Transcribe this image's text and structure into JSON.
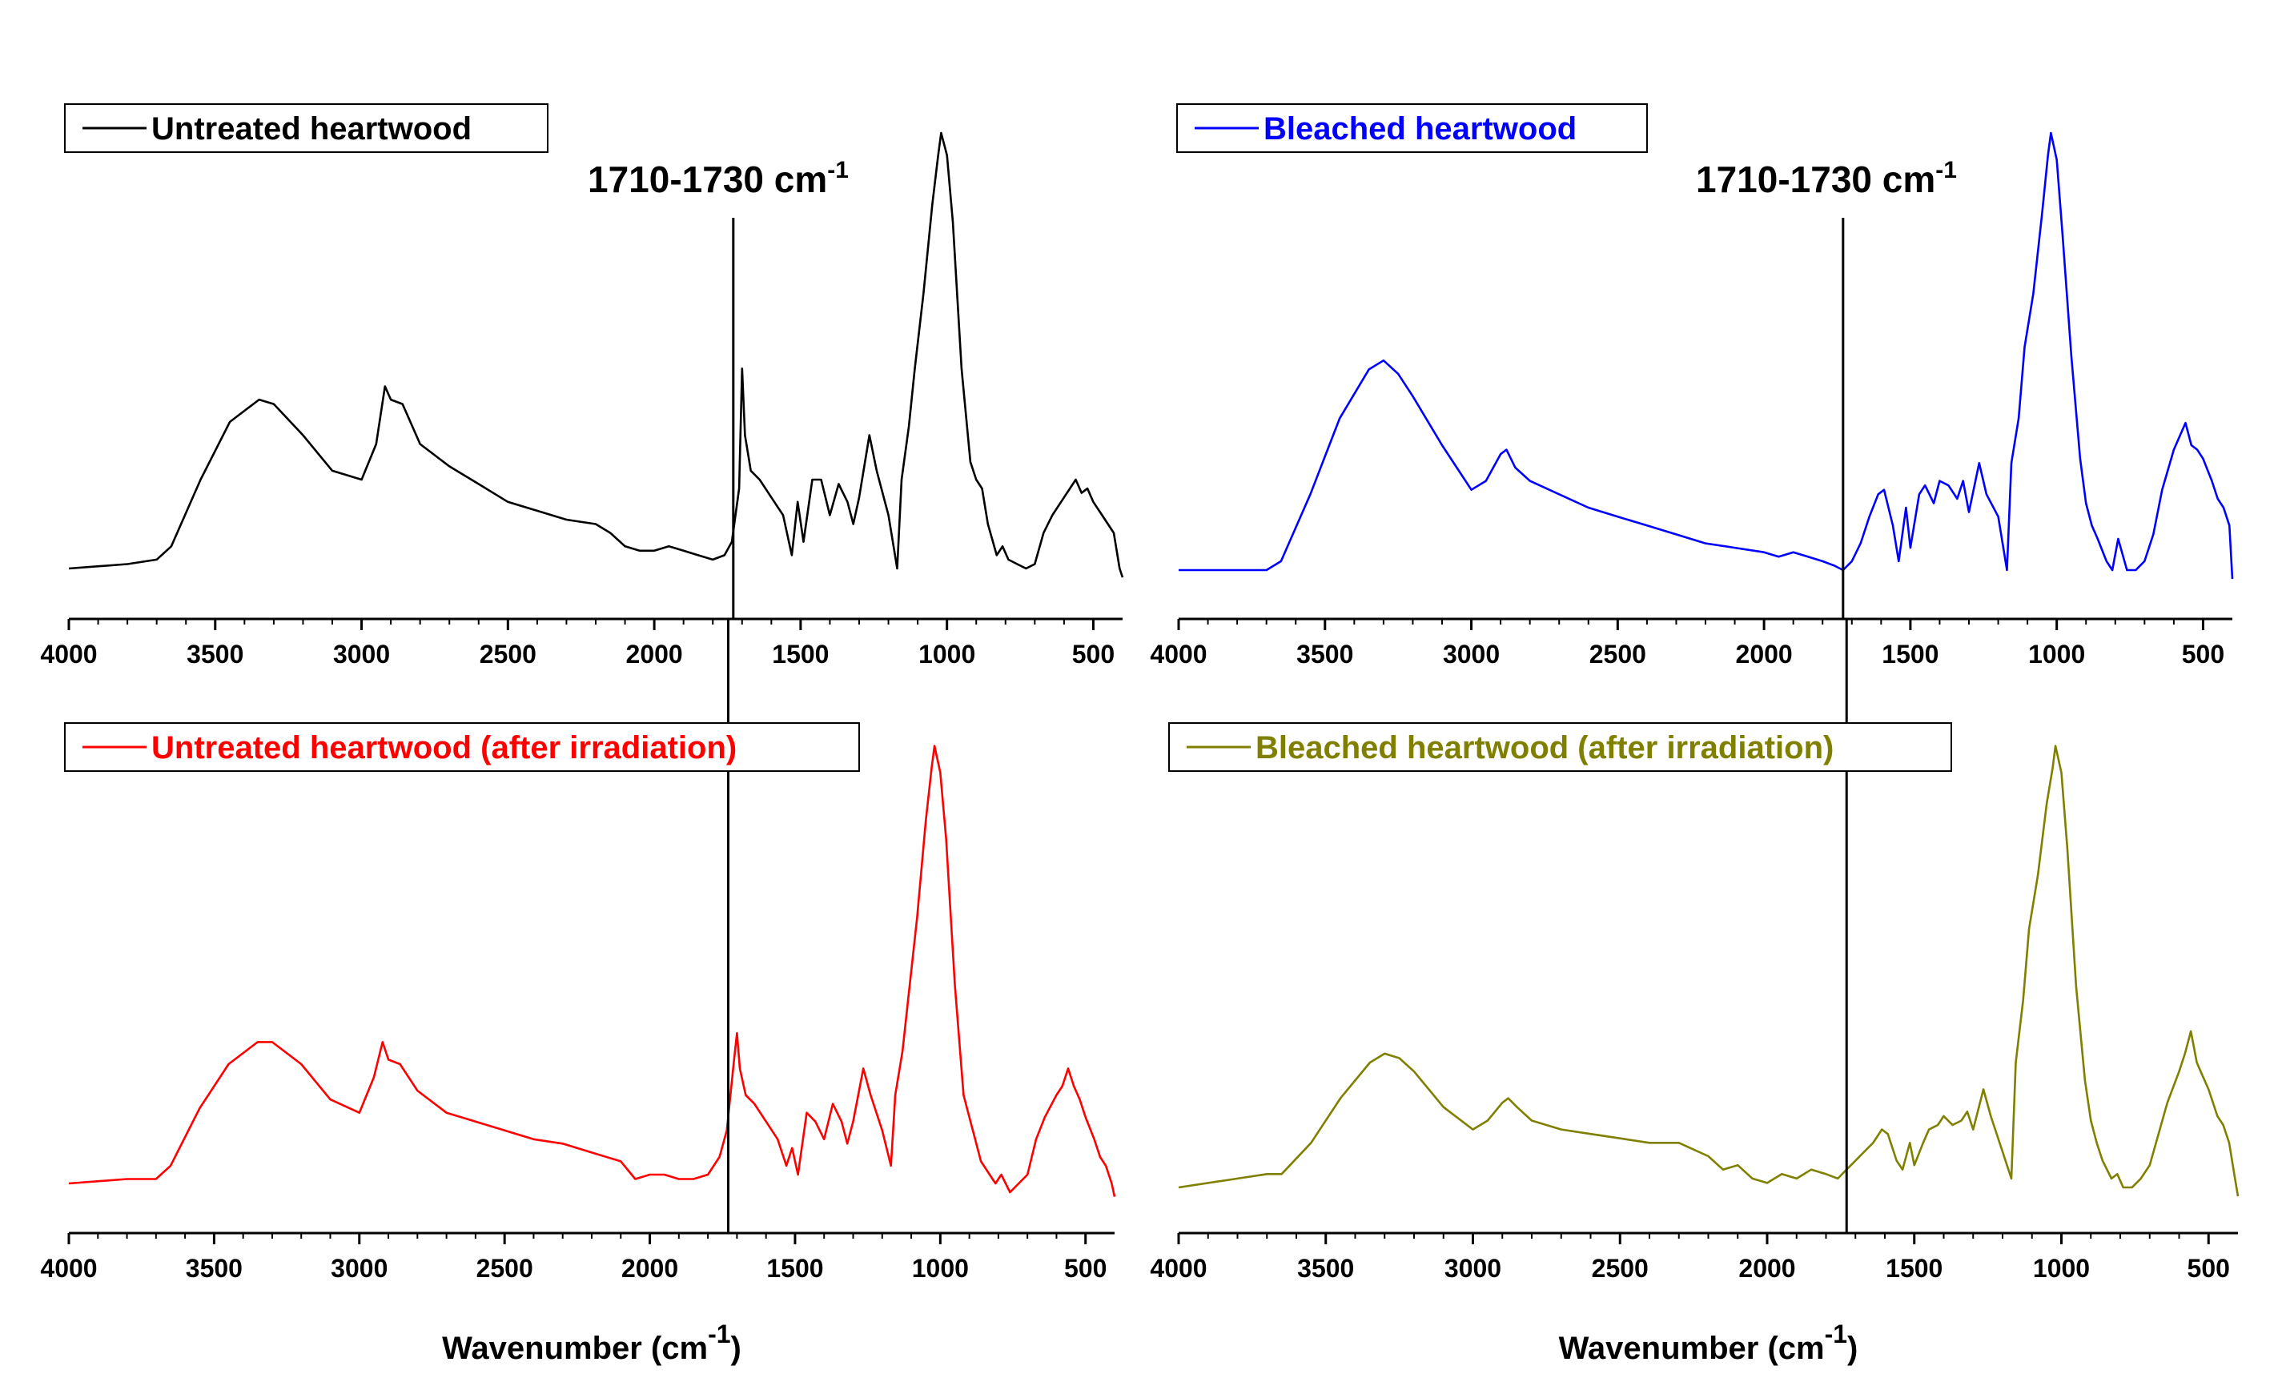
{
  "chart_data": [
    {
      "type": "line",
      "panel": "top-left",
      "legend": "Untreated heartwood",
      "color": "#000000",
      "xlim": [
        4000,
        400
      ],
      "xticks": [
        4000,
        3500,
        3000,
        2500,
        2000,
        1500,
        1000,
        500
      ],
      "xlabel": "",
      "annotation": {
        "text": "1710-1730 cm",
        "sup": "-1",
        "x": 1730
      },
      "x": [
        4000,
        3800,
        3700,
        3650,
        3550,
        3450,
        3350,
        3300,
        3200,
        3100,
        3000,
        2950,
        2920,
        2900,
        2860,
        2800,
        2700,
        2600,
        2500,
        2400,
        2300,
        2200,
        2150,
        2100,
        2050,
        2000,
        1950,
        1900,
        1850,
        1800,
        1760,
        1735,
        1710,
        1700,
        1690,
        1670,
        1640,
        1600,
        1560,
        1530,
        1510,
        1490,
        1460,
        1430,
        1400,
        1370,
        1340,
        1320,
        1300,
        1265,
        1240,
        1200,
        1170,
        1155,
        1130,
        1110,
        1080,
        1050,
        1030,
        1020,
        1000,
        980,
        950,
        920,
        900,
        880,
        860,
        830,
        810,
        790,
        760,
        730,
        700,
        670,
        640,
        600,
        580,
        560,
        540,
        520,
        500,
        470,
        450,
        430,
        410,
        400
      ],
      "values": [
        0.0,
        0.01,
        0.02,
        0.05,
        0.2,
        0.33,
        0.38,
        0.37,
        0.3,
        0.22,
        0.2,
        0.28,
        0.41,
        0.38,
        0.37,
        0.28,
        0.23,
        0.19,
        0.15,
        0.13,
        0.11,
        0.1,
        0.08,
        0.05,
        0.04,
        0.04,
        0.05,
        0.04,
        0.03,
        0.02,
        0.03,
        0.06,
        0.18,
        0.45,
        0.3,
        0.22,
        0.2,
        0.16,
        0.12,
        0.03,
        0.15,
        0.06,
        0.2,
        0.2,
        0.12,
        0.19,
        0.15,
        0.1,
        0.16,
        0.3,
        0.22,
        0.12,
        0.0,
        0.2,
        0.32,
        0.45,
        0.62,
        0.82,
        0.93,
        0.98,
        0.93,
        0.78,
        0.45,
        0.24,
        0.2,
        0.18,
        0.1,
        0.03,
        0.05,
        0.02,
        0.01,
        0.0,
        0.01,
        0.08,
        0.12,
        0.16,
        0.18,
        0.2,
        0.17,
        0.18,
        0.15,
        0.12,
        0.1,
        0.08,
        0.0,
        -0.02
      ]
    },
    {
      "type": "line",
      "panel": "top-right",
      "legend": "Bleached heartwood",
      "color": "#0000ff",
      "xlim": [
        4000,
        400
      ],
      "xticks": [
        4000,
        3500,
        3000,
        2500,
        2000,
        1500,
        1000,
        500
      ],
      "xlabel": "",
      "annotation": {
        "text": "1710-1730 cm",
        "sup": "-1",
        "x": 1730
      },
      "x": [
        4000,
        3800,
        3700,
        3650,
        3550,
        3450,
        3350,
        3300,
        3250,
        3200,
        3100,
        3000,
        2950,
        2900,
        2880,
        2850,
        2800,
        2700,
        2600,
        2500,
        2400,
        2300,
        2200,
        2100,
        2000,
        1950,
        1900,
        1850,
        1800,
        1760,
        1730,
        1700,
        1670,
        1640,
        1610,
        1590,
        1560,
        1540,
        1515,
        1500,
        1470,
        1450,
        1420,
        1400,
        1370,
        1340,
        1320,
        1300,
        1265,
        1240,
        1200,
        1170,
        1155,
        1130,
        1110,
        1080,
        1050,
        1030,
        1020,
        1000,
        980,
        950,
        920,
        900,
        880,
        860,
        830,
        810,
        790,
        760,
        730,
        700,
        670,
        640,
        600,
        580,
        560,
        540,
        520,
        500,
        470,
        450,
        430,
        410,
        400
      ],
      "values": [
        0.0,
        0.0,
        0.0,
        0.02,
        0.17,
        0.34,
        0.45,
        0.47,
        0.44,
        0.39,
        0.28,
        0.18,
        0.2,
        0.26,
        0.27,
        0.23,
        0.2,
        0.17,
        0.14,
        0.12,
        0.1,
        0.08,
        0.06,
        0.05,
        0.04,
        0.03,
        0.04,
        0.03,
        0.02,
        0.01,
        0.0,
        0.02,
        0.06,
        0.12,
        0.17,
        0.18,
        0.1,
        0.02,
        0.14,
        0.05,
        0.17,
        0.19,
        0.15,
        0.2,
        0.19,
        0.16,
        0.2,
        0.13,
        0.24,
        0.17,
        0.12,
        0.0,
        0.24,
        0.34,
        0.5,
        0.62,
        0.8,
        0.93,
        0.98,
        0.92,
        0.75,
        0.48,
        0.25,
        0.15,
        0.1,
        0.07,
        0.02,
        0.0,
        0.07,
        0.0,
        0.0,
        0.02,
        0.08,
        0.18,
        0.27,
        0.3,
        0.33,
        0.28,
        0.27,
        0.25,
        0.2,
        0.16,
        0.14,
        0.1,
        -0.02
      ]
    },
    {
      "type": "line",
      "panel": "bottom-left",
      "legend": "Untreated heartwood (after irradiation)",
      "color": "#ff0000",
      "xlim": [
        4000,
        400
      ],
      "xticks": [
        4000,
        3500,
        3000,
        2500,
        2000,
        1500,
        1000,
        500
      ],
      "xlabel": "Wavenumber (cm",
      "xlabel_sup": "-1",
      "xlabel_close": ")",
      "x": [
        4000,
        3800,
        3700,
        3650,
        3550,
        3450,
        3350,
        3300,
        3200,
        3100,
        3000,
        2950,
        2920,
        2900,
        2860,
        2800,
        2700,
        2600,
        2500,
        2400,
        2300,
        2200,
        2100,
        2050,
        2000,
        1950,
        1900,
        1850,
        1800,
        1760,
        1735,
        1710,
        1700,
        1690,
        1670,
        1640,
        1600,
        1560,
        1530,
        1510,
        1490,
        1460,
        1430,
        1400,
        1370,
        1340,
        1320,
        1300,
        1265,
        1240,
        1200,
        1170,
        1155,
        1130,
        1110,
        1080,
        1050,
        1030,
        1020,
        1000,
        980,
        950,
        920,
        900,
        880,
        860,
        830,
        810,
        790,
        760,
        730,
        700,
        670,
        640,
        600,
        580,
        560,
        540,
        520,
        500,
        470,
        450,
        430,
        410,
        400
      ],
      "values": [
        0.0,
        0.01,
        0.01,
        0.04,
        0.17,
        0.27,
        0.32,
        0.32,
        0.27,
        0.19,
        0.16,
        0.24,
        0.32,
        0.28,
        0.27,
        0.21,
        0.16,
        0.14,
        0.12,
        0.1,
        0.09,
        0.07,
        0.05,
        0.01,
        0.02,
        0.02,
        0.01,
        0.01,
        0.02,
        0.06,
        0.12,
        0.28,
        0.34,
        0.26,
        0.2,
        0.18,
        0.14,
        0.1,
        0.04,
        0.08,
        0.02,
        0.16,
        0.14,
        0.1,
        0.18,
        0.14,
        0.09,
        0.14,
        0.26,
        0.2,
        0.12,
        0.04,
        0.2,
        0.3,
        0.42,
        0.6,
        0.82,
        0.94,
        0.99,
        0.93,
        0.78,
        0.45,
        0.2,
        0.15,
        0.1,
        0.05,
        0.02,
        0.0,
        0.02,
        -0.02,
        0.0,
        0.02,
        0.1,
        0.15,
        0.2,
        0.22,
        0.26,
        0.22,
        0.19,
        0.15,
        0.1,
        0.06,
        0.04,
        0.0,
        -0.03
      ]
    },
    {
      "type": "line",
      "panel": "bottom-right",
      "legend": "Bleached heartwood (after irradiation)",
      "color": "#808000",
      "xlim": [
        4000,
        400
      ],
      "xticks": [
        4000,
        3500,
        3000,
        2500,
        2000,
        1500,
        1000,
        500
      ],
      "xlabel": "Wavenumber (cm",
      "xlabel_sup": "-1",
      "xlabel_close": ")",
      "x": [
        4000,
        3800,
        3700,
        3650,
        3550,
        3450,
        3350,
        3300,
        3250,
        3200,
        3100,
        3000,
        2950,
        2900,
        2880,
        2850,
        2800,
        2700,
        2600,
        2500,
        2400,
        2300,
        2200,
        2150,
        2100,
        2050,
        2000,
        1950,
        1900,
        1850,
        1800,
        1760,
        1730,
        1700,
        1670,
        1640,
        1610,
        1590,
        1560,
        1540,
        1515,
        1500,
        1470,
        1450,
        1420,
        1400,
        1370,
        1340,
        1320,
        1300,
        1265,
        1240,
        1200,
        1170,
        1155,
        1130,
        1110,
        1080,
        1050,
        1030,
        1020,
        1000,
        980,
        950,
        920,
        900,
        880,
        860,
        830,
        810,
        790,
        760,
        730,
        700,
        670,
        640,
        600,
        580,
        560,
        540,
        520,
        500,
        470,
        450,
        430,
        410,
        400
      ],
      "values": [
        0.0,
        0.02,
        0.03,
        0.03,
        0.1,
        0.2,
        0.28,
        0.3,
        0.29,
        0.26,
        0.18,
        0.13,
        0.15,
        0.19,
        0.2,
        0.18,
        0.15,
        0.13,
        0.12,
        0.11,
        0.1,
        0.1,
        0.07,
        0.04,
        0.05,
        0.02,
        0.01,
        0.03,
        0.02,
        0.04,
        0.03,
        0.02,
        0.04,
        0.06,
        0.08,
        0.1,
        0.13,
        0.12,
        0.06,
        0.04,
        0.1,
        0.05,
        0.1,
        0.13,
        0.14,
        0.16,
        0.14,
        0.15,
        0.17,
        0.13,
        0.22,
        0.16,
        0.08,
        0.02,
        0.28,
        0.42,
        0.58,
        0.7,
        0.86,
        0.94,
        0.99,
        0.93,
        0.76,
        0.45,
        0.24,
        0.15,
        0.1,
        0.06,
        0.02,
        0.03,
        0.0,
        0.0,
        0.02,
        0.05,
        0.12,
        0.19,
        0.26,
        0.3,
        0.35,
        0.28,
        0.25,
        0.22,
        0.16,
        0.14,
        0.1,
        0.02,
        -0.02
      ]
    }
  ]
}
